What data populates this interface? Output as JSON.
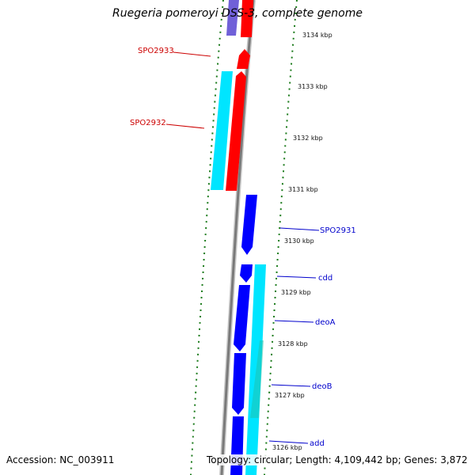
{
  "title": "Ruegeria pomeroyi DSS-3, complete genome",
  "footer": {
    "accession": "Accession: NC_003911",
    "topology": "Topology: circular; Length: 4,109,442 bp; Genes: 3,872"
  },
  "ruler": [
    "3134 kbp",
    "3133 kbp",
    "3132 kbp",
    "3131 kbp",
    "3130 kbp",
    "3129 kbp",
    "3128 kbp",
    "3127 kbp",
    "3126 kbp"
  ],
  "genes_reverse": [
    "SPO2933",
    "SPO2932"
  ],
  "genes_forward": [
    "SPO2931",
    "cdd",
    "deoA",
    "deoB",
    "add"
  ],
  "colors": {
    "reverse_label": "#cc0000",
    "forward_label": "#0000cc",
    "red_feature": "#ff0000",
    "blue_feature": "#0000ff",
    "cyan_feature": "#00e5ff",
    "backbone": "#808080",
    "tick": "#1a7a1a"
  }
}
